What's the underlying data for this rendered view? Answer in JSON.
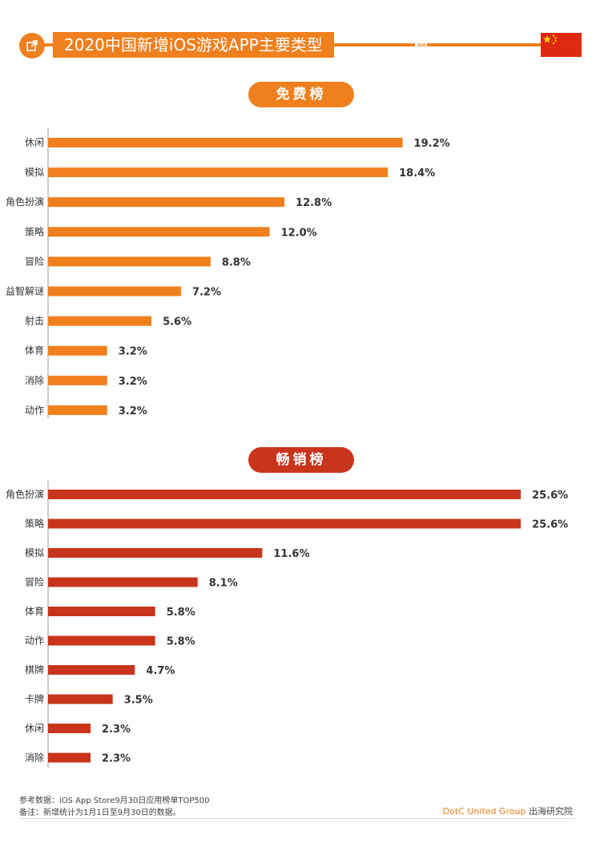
{
  "header": {
    "title": "2020中国新增iOS游戏APP主要类型",
    "chevrons": "»»",
    "colors": {
      "accent": "#f07f1d",
      "flag_red": "#de2910",
      "flag_star": "#ffde00"
    }
  },
  "chart_data": [
    {
      "type": "bar",
      "orientation": "horizontal",
      "title": "免费榜",
      "categories": [
        "休闲",
        "模拟",
        "角色扮演",
        "策略",
        "冒险",
        "益智解谜",
        "射击",
        "体育",
        "消除",
        "动作"
      ],
      "values": [
        19.2,
        18.4,
        12.8,
        12.0,
        8.8,
        7.2,
        5.6,
        3.2,
        3.2,
        3.2
      ],
      "value_labels": [
        "19.2%",
        "18.4%",
        "12.8%",
        "12.0%",
        "8.8%",
        "7.2%",
        "5.6%",
        "3.2%",
        "3.2%",
        "3.2%"
      ],
      "unit": "%",
      "color": "#f07f1d"
    },
    {
      "type": "bar",
      "orientation": "horizontal",
      "title": "畅销榜",
      "categories": [
        "角色扮演",
        "策略",
        "模拟",
        "冒险",
        "体育",
        "动作",
        "棋牌",
        "卡牌",
        "休闲",
        "消除"
      ],
      "values": [
        25.6,
        25.6,
        11.6,
        8.1,
        5.8,
        5.8,
        4.7,
        3.5,
        2.3,
        2.3
      ],
      "value_labels": [
        "25.6%",
        "25.6%",
        "11.6%",
        "8.1%",
        "5.8%",
        "5.8%",
        "4.7%",
        "3.5%",
        "2.3%",
        "2.3%"
      ],
      "unit": "%",
      "color": "#c9341c"
    }
  ],
  "footer": {
    "source": "参考数据：iOS App Store9月30日应用榜单TOP500",
    "note": "备注：新增统计为1月1日至9月30日的数据。",
    "brand_name": "DotC United Group",
    "brand_suffix": " 出海研究院"
  }
}
